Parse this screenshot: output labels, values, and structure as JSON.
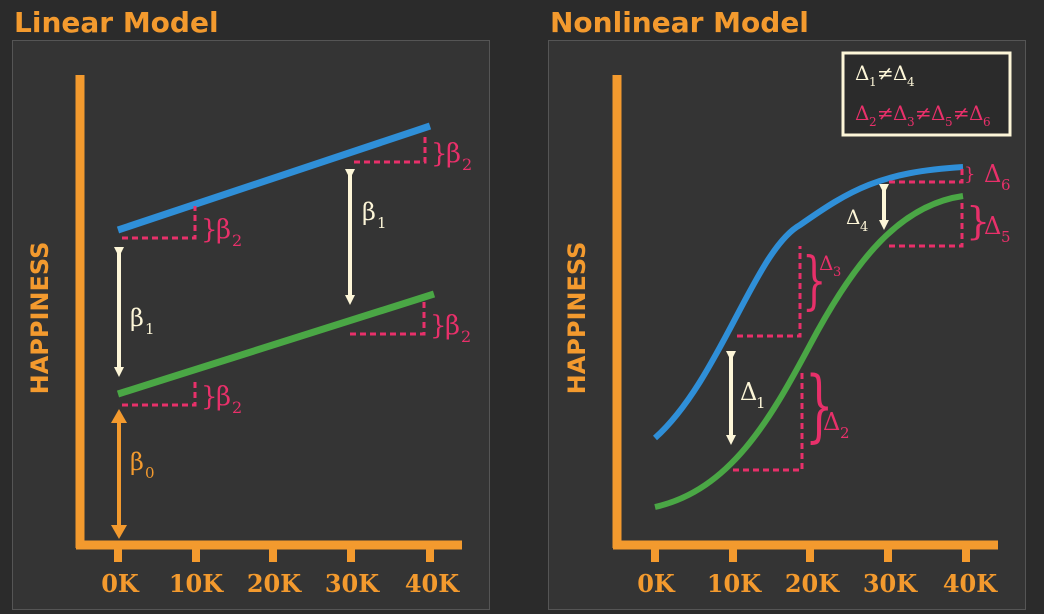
{
  "left": {
    "title": "Linear Model",
    "ylabel": "HAPPINESS",
    "ticks": [
      "0K",
      "10K",
      "20K",
      "30K",
      "40K"
    ],
    "labels": {
      "beta": "β",
      "sub0": "0",
      "sub1": "1",
      "sub2": "2"
    }
  },
  "right": {
    "title": "Nonlinear Model",
    "ylabel": "HAPPINESS",
    "ticks": [
      "0K",
      "10K",
      "20K",
      "30K",
      "40K"
    ],
    "labels": {
      "delta": "Δ",
      "neq": "≠",
      "s1": "1",
      "s2": "2",
      "s3": "3",
      "s4": "4",
      "s5": "5",
      "s6": "6"
    }
  },
  "colors": {
    "orange": "#f39a2e",
    "blue": "#2f8fd8",
    "green": "#4aa745",
    "pink": "#e8306a",
    "cream": "#fdf6d8"
  }
}
